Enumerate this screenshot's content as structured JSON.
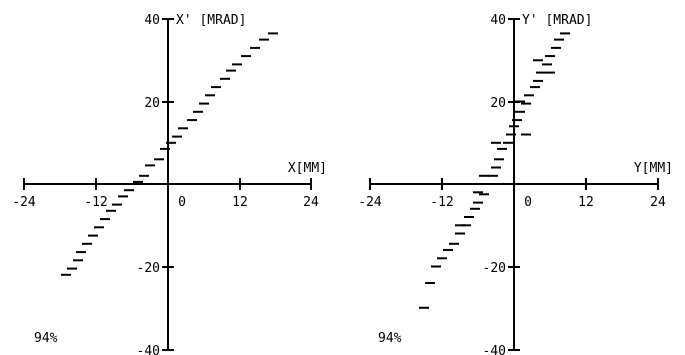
{
  "chart_data": [
    {
      "type": "scatter",
      "xlabel": "X[MM]",
      "ylabel": "X' [MRAD]",
      "xlim": [
        -24,
        24
      ],
      "ylim": [
        -40,
        40
      ],
      "x_ticks": [
        "-24",
        "-12",
        "0",
        "12",
        "24"
      ],
      "y_ticks": [
        "40",
        "20",
        "-20",
        "-40"
      ],
      "annotation": "94%",
      "series": [
        {
          "points": [
            [
              -17.0,
              -22.0
            ],
            [
              -16.0,
              -20.5
            ],
            [
              -15.0,
              -18.5
            ],
            [
              -14.5,
              -16.5
            ],
            [
              -13.5,
              -14.5
            ],
            [
              -12.5,
              -12.5
            ],
            [
              -11.5,
              -10.5
            ],
            [
              -10.5,
              -8.5
            ],
            [
              -9.5,
              -6.5
            ],
            [
              -8.5,
              -5.0
            ],
            [
              -7.5,
              -3.0
            ],
            [
              -6.5,
              -1.5
            ],
            [
              -5.0,
              0.5
            ],
            [
              -4.0,
              2.0
            ],
            [
              -3.0,
              4.5
            ],
            [
              -1.5,
              6.0
            ],
            [
              -0.5,
              8.5
            ],
            [
              0.5,
              10.0
            ],
            [
              1.5,
              11.5
            ],
            [
              2.5,
              13.5
            ],
            [
              4.0,
              15.5
            ],
            [
              5.0,
              17.5
            ],
            [
              6.0,
              19.5
            ],
            [
              7.0,
              21.5
            ],
            [
              8.0,
              23.5
            ],
            [
              9.5,
              25.5
            ],
            [
              10.5,
              27.5
            ],
            [
              11.5,
              29.0
            ],
            [
              13.0,
              31.0
            ],
            [
              14.5,
              33.0
            ],
            [
              16.0,
              35.0
            ],
            [
              17.5,
              36.5
            ]
          ]
        }
      ]
    },
    {
      "type": "scatter",
      "xlabel": "Y[MM]",
      "ylabel": "Y' [MRAD]",
      "xlim": [
        -24,
        24
      ],
      "ylim": [
        -40,
        40
      ],
      "x_ticks": [
        "-24",
        "-12",
        "0",
        "12",
        "24"
      ],
      "y_ticks": [
        "40",
        "20",
        "-20",
        "-40"
      ],
      "annotation": "94%",
      "series": [
        {
          "points": [
            [
              -15.0,
              -30.0
            ],
            [
              -14.0,
              -24.0
            ],
            [
              -13.0,
              -20.0
            ],
            [
              -12.0,
              -18.0
            ],
            [
              -11.0,
              -16.0
            ],
            [
              -10.0,
              -14.5
            ],
            [
              -9.0,
              -12.0
            ],
            [
              -8.0,
              -10.0
            ],
            [
              -7.5,
              -8.0
            ],
            [
              -6.5,
              -6.0
            ],
            [
              -6.0,
              -4.5
            ],
            [
              -5.0,
              -2.5
            ],
            [
              -4.5,
              0.0
            ],
            [
              -3.5,
              2.0
            ],
            [
              -3.0,
              4.0
            ],
            [
              -2.5,
              6.0
            ],
            [
              -2.0,
              8.5
            ],
            [
              -1.0,
              10.0
            ],
            [
              -0.5,
              12.0
            ],
            [
              0.0,
              14.0
            ],
            [
              0.5,
              15.5
            ],
            [
              1.0,
              17.5
            ],
            [
              2.0,
              19.5
            ],
            [
              2.5,
              21.5
            ],
            [
              3.5,
              23.5
            ],
            [
              4.0,
              25.0
            ],
            [
              4.5,
              27.0
            ],
            [
              5.5,
              29.0
            ],
            [
              6.0,
              31.0
            ],
            [
              7.0,
              33.0
            ],
            [
              7.5,
              35.0
            ],
            [
              8.5,
              36.5
            ],
            [
              2.0,
              12.0
            ],
            [
              -5.0,
              2.0
            ],
            [
              -6.0,
              -2.0
            ],
            [
              4.0,
              30.0
            ],
            [
              -9.0,
              -10.0
            ],
            [
              1.0,
              20.0
            ],
            [
              6.0,
              27.0
            ],
            [
              -3.0,
              10.0
            ]
          ]
        }
      ]
    }
  ]
}
